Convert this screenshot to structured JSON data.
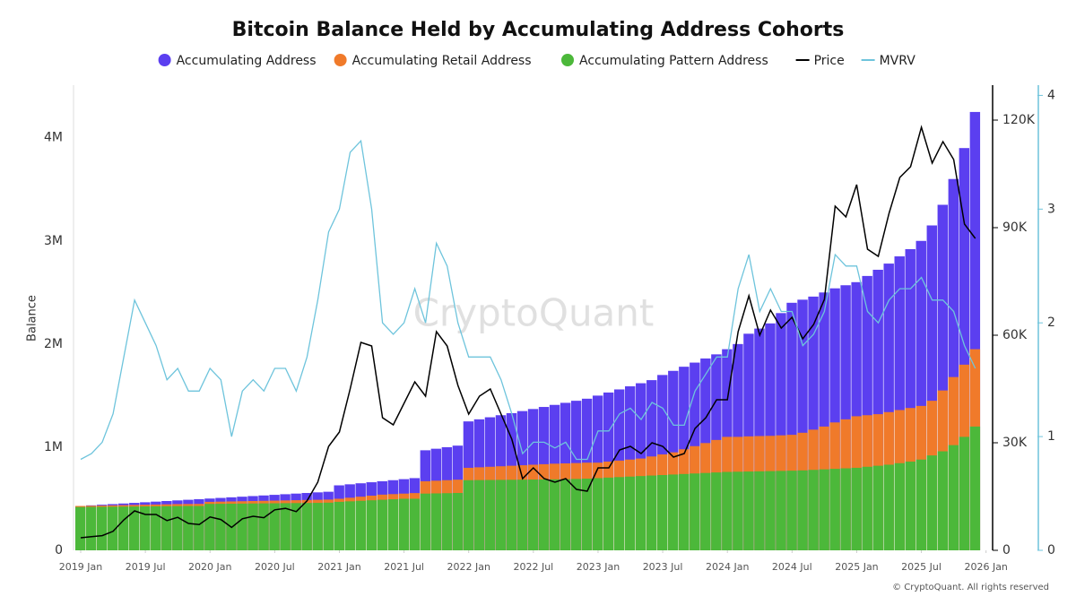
{
  "chart_data": {
    "type": "bar-line",
    "title": "Bitcoin Balance Held by Accumulating Address Cohorts",
    "watermark": "CryptoQuant",
    "footer": "© CryptoQuant. All rights reserved",
    "ylabel": "Balance",
    "x": [
      "2019-01",
      "2019-02",
      "2019-03",
      "2019-04",
      "2019-05",
      "2019-06",
      "2019-07",
      "2019-08",
      "2019-09",
      "2019-10",
      "2019-11",
      "2019-12",
      "2020-01",
      "2020-02",
      "2020-03",
      "2020-04",
      "2020-05",
      "2020-06",
      "2020-07",
      "2020-08",
      "2020-09",
      "2020-10",
      "2020-11",
      "2020-12",
      "2021-01",
      "2021-02",
      "2021-03",
      "2021-04",
      "2021-05",
      "2021-06",
      "2021-07",
      "2021-08",
      "2021-09",
      "2021-10",
      "2021-11",
      "2021-12",
      "2022-01",
      "2022-02",
      "2022-03",
      "2022-04",
      "2022-05",
      "2022-06",
      "2022-07",
      "2022-08",
      "2022-09",
      "2022-10",
      "2022-11",
      "2022-12",
      "2023-01",
      "2023-02",
      "2023-03",
      "2023-04",
      "2023-05",
      "2023-06",
      "2023-07",
      "2023-08",
      "2023-09",
      "2023-10",
      "2023-11",
      "2023-12",
      "2024-01",
      "2024-02",
      "2024-03",
      "2024-04",
      "2024-05",
      "2024-06",
      "2024-07",
      "2024-08",
      "2024-09",
      "2024-10",
      "2024-11",
      "2024-12",
      "2025-01",
      "2025-02",
      "2025-03",
      "2025-04",
      "2025-05",
      "2025-06",
      "2025-07",
      "2025-08",
      "2025-09",
      "2025-10",
      "2025-11",
      "2025-12"
    ],
    "series": [
      {
        "name": "Accumulating Address",
        "color": "#5b3ff0",
        "kind": "bar",
        "axis": "y",
        "values": [
          430000,
          436000,
          442000,
          448000,
          454000,
          460000,
          466000,
          472000,
          478000,
          484000,
          490000,
          496000,
          502000,
          508000,
          514000,
          520000,
          526000,
          532000,
          538000,
          544000,
          550000,
          556000,
          562000,
          568000,
          630000,
          640000,
          650000,
          660000,
          670000,
          680000,
          690000,
          700000,
          970000,
          985000,
          1000000,
          1015000,
          1250000,
          1270000,
          1290000,
          1310000,
          1330000,
          1350000,
          1370000,
          1390000,
          1410000,
          1430000,
          1450000,
          1470000,
          1500000,
          1530000,
          1560000,
          1590000,
          1620000,
          1650000,
          1700000,
          1740000,
          1780000,
          1820000,
          1860000,
          1900000,
          1950000,
          2000000,
          2100000,
          2150000,
          2200000,
          2300000,
          2400000,
          2430000,
          2460000,
          2500000,
          2540000,
          2570000,
          2600000,
          2660000,
          2720000,
          2780000,
          2850000,
          2920000,
          3000000,
          3150000,
          3350000,
          3600000,
          3900000,
          4250000
        ]
      },
      {
        "name": "Accumulating Retail Address",
        "color": "#f07a2a",
        "kind": "bar",
        "axis": "y",
        "values": [
          430000,
          432000,
          434000,
          436000,
          438000,
          440000,
          442000,
          444000,
          446000,
          448000,
          449000,
          450000,
          470000,
          472000,
          474000,
          476000,
          478000,
          480000,
          482000,
          484000,
          486000,
          488000,
          490000,
          492000,
          500000,
          510000,
          520000,
          530000,
          540000,
          545000,
          550000,
          555000,
          670000,
          675000,
          680000,
          685000,
          800000,
          805000,
          810000,
          815000,
          820000,
          825000,
          830000,
          835000,
          840000,
          843000,
          846000,
          850000,
          850000,
          860000,
          870000,
          880000,
          890000,
          910000,
          930000,
          950000,
          980000,
          1010000,
          1040000,
          1070000,
          1100000,
          1100000,
          1105000,
          1108000,
          1110000,
          1115000,
          1120000,
          1140000,
          1170000,
          1200000,
          1240000,
          1270000,
          1300000,
          1310000,
          1320000,
          1340000,
          1360000,
          1380000,
          1400000,
          1450000,
          1550000,
          1680000,
          1800000,
          1950000
        ]
      },
      {
        "name": "Accumulating Pattern Address",
        "color": "#4cb83a",
        "kind": "bar",
        "axis": "y",
        "values": [
          420000,
          421000,
          422000,
          423000,
          424000,
          425000,
          426000,
          427000,
          428000,
          429000,
          430000,
          430000,
          450000,
          451000,
          452000,
          453000,
          454000,
          455000,
          456000,
          457000,
          458000,
          459000,
          460000,
          462000,
          470000,
          475000,
          480000,
          485000,
          490000,
          495000,
          500000,
          500000,
          550000,
          552000,
          554000,
          556000,
          680000,
          681000,
          682000,
          683000,
          684000,
          685000,
          686000,
          687000,
          688000,
          690000,
          692000,
          695000,
          700000,
          705000,
          710000,
          715000,
          720000,
          725000,
          730000,
          735000,
          740000,
          745000,
          750000,
          755000,
          760000,
          762000,
          764000,
          766000,
          768000,
          770000,
          772000,
          775000,
          780000,
          785000,
          790000,
          795000,
          800000,
          810000,
          820000,
          830000,
          845000,
          860000,
          880000,
          920000,
          960000,
          1020000,
          1100000,
          1200000
        ]
      },
      {
        "name": "Price",
        "color": "#000000",
        "kind": "line",
        "axis": "y2",
        "values": [
          3500,
          3800,
          4100,
          5300,
          8500,
          11000,
          10000,
          10000,
          8300,
          9200,
          7500,
          7200,
          9300,
          8600,
          6400,
          8800,
          9500,
          9100,
          11300,
          11700,
          10800,
          13800,
          19000,
          29000,
          33000,
          45000,
          58000,
          57000,
          37000,
          35000,
          41000,
          47000,
          43000,
          61000,
          57000,
          46000,
          38000,
          43000,
          45000,
          38000,
          31000,
          20000,
          23000,
          20000,
          19000,
          20000,
          17000,
          16500,
          23000,
          23000,
          28000,
          29000,
          27000,
          30000,
          29000,
          26000,
          27000,
          34000,
          37000,
          42000,
          42000,
          61000,
          71000,
          60000,
          67000,
          62000,
          65000,
          59000,
          63000,
          70000,
          96000,
          93000,
          102000,
          84000,
          82000,
          94000,
          104000,
          107000,
          118000,
          108000,
          114000,
          109000,
          91000,
          87000
        ]
      },
      {
        "name": "MVRV",
        "color": "#6ec4dc",
        "kind": "line",
        "axis": "y3",
        "values": [
          0.8,
          0.85,
          0.95,
          1.2,
          1.7,
          2.2,
          2.0,
          1.8,
          1.5,
          1.6,
          1.4,
          1.4,
          1.6,
          1.5,
          1.0,
          1.4,
          1.5,
          1.4,
          1.6,
          1.6,
          1.4,
          1.7,
          2.2,
          2.8,
          3.0,
          3.5,
          3.6,
          3.0,
          2.0,
          1.9,
          2.0,
          2.3,
          2.0,
          2.7,
          2.5,
          2.0,
          1.7,
          1.7,
          1.7,
          1.5,
          1.2,
          0.85,
          0.95,
          0.95,
          0.9,
          0.95,
          0.8,
          0.8,
          1.05,
          1.05,
          1.2,
          1.25,
          1.15,
          1.3,
          1.25,
          1.1,
          1.1,
          1.4,
          1.55,
          1.7,
          1.7,
          2.3,
          2.6,
          2.1,
          2.3,
          2.1,
          2.1,
          1.8,
          1.9,
          2.1,
          2.6,
          2.5,
          2.5,
          2.1,
          2.0,
          2.2,
          2.3,
          2.3,
          2.4,
          2.2,
          2.2,
          2.1,
          1.8,
          1.6
        ]
      }
    ],
    "ylim": [
      0,
      4510000
    ],
    "yticks": [
      0,
      {
        "value": 1000000,
        "label": "1M"
      },
      {
        "value": 2000000,
        "label": "2M"
      },
      {
        "value": 3000000,
        "label": "3M"
      },
      {
        "value": 4000000,
        "label": "4M"
      }
    ],
    "y2lim": [
      0,
      129750
    ],
    "y2ticks": [
      0,
      {
        "value": 30000,
        "label": "30K"
      },
      {
        "value": 60000,
        "label": "60K"
      },
      {
        "value": 90000,
        "label": "90K"
      },
      {
        "value": 120000,
        "label": "120K"
      }
    ],
    "y3lim": [
      0,
      4.09
    ],
    "y3ticks": [
      0,
      1,
      2,
      3,
      4
    ],
    "xticks": [
      {
        "value": "2019-01",
        "label": "2019 Jan"
      },
      {
        "value": "2019-07",
        "label": "2019 Jul"
      },
      {
        "value": "2020-01",
        "label": "2020 Jan"
      },
      {
        "value": "2020-07",
        "label": "2020 Jul"
      },
      {
        "value": "2021-01",
        "label": "2021 Jan"
      },
      {
        "value": "2021-07",
        "label": "2021 Jul"
      },
      {
        "value": "2022-01",
        "label": "2022 Jan"
      },
      {
        "value": "2022-07",
        "label": "2022 Jul"
      },
      {
        "value": "2023-01",
        "label": "2023 Jan"
      },
      {
        "value": "2023-07",
        "label": "2023 Jul"
      },
      {
        "value": "2024-01",
        "label": "2024 Jan"
      },
      {
        "value": "2024-07",
        "label": "2024 Jul"
      },
      {
        "value": "2025-01",
        "label": "2025 Jan"
      },
      {
        "value": "2025-07",
        "label": "2025 Jul"
      },
      {
        "value": "2026-01",
        "label": "2026 Jan"
      }
    ],
    "legend": "top"
  }
}
